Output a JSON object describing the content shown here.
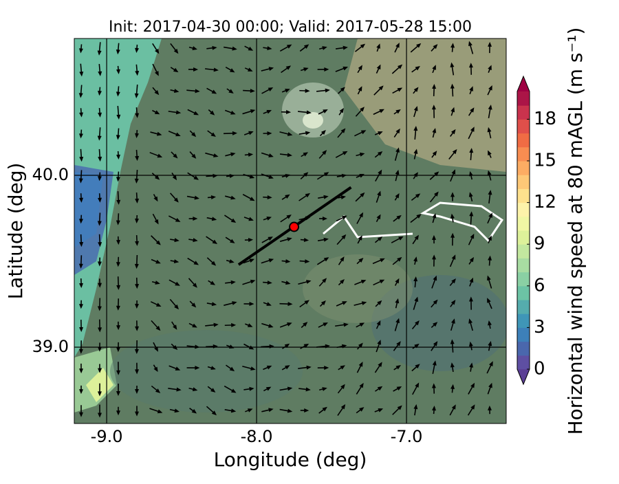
{
  "chart_data": {
    "type": "map",
    "title": "Init: 2017-04-30 00:00; Valid: 2017-05-28 15:00",
    "xlabel": "Longitude (deg)",
    "ylabel": "Latitude (deg)",
    "xlim": [
      -9.216,
      -6.335
    ],
    "ylim": [
      38.556,
      40.796
    ],
    "xticks": [
      {
        "value": -9,
        "label": "-9.0"
      },
      {
        "value": -8,
        "label": "-8.0"
      },
      {
        "value": -7,
        "label": "-7.0"
      }
    ],
    "yticks": [
      {
        "value": 39,
        "label": "39.0"
      },
      {
        "value": 40,
        "label": "40.0"
      }
    ],
    "grid": true,
    "point": {
      "x": -7.75,
      "y": 39.7,
      "color": "#ff0000"
    },
    "transect": {
      "x": [
        -8.12,
        -7.37
      ],
      "y": [
        39.48,
        39.93
      ],
      "color": "#000000"
    },
    "colorbar": {
      "label": "Horizontal wind speed at 80 mAGL (m s⁻¹)",
      "lim": [
        0,
        20
      ],
      "ticks": [
        0,
        3,
        6,
        9,
        12,
        15,
        18
      ],
      "extend": "both",
      "under_color": "#5b3f95",
      "over_color": "#9e0142",
      "colors": [
        "#5e4fa2",
        "#4a67ad",
        "#3d80b9",
        "#3f96b7",
        "#55acad",
        "#6cc3a5",
        "#8ad0a4",
        "#a8dca2",
        "#c3e89f",
        "#ddf19a",
        "#f0f7a4",
        "#fdf3aa",
        "#fee18d",
        "#fdc877",
        "#fcac63",
        "#f88d51",
        "#f06c44",
        "#e04f4a",
        "#c9334d",
        "#ab1547"
      ]
    }
  }
}
